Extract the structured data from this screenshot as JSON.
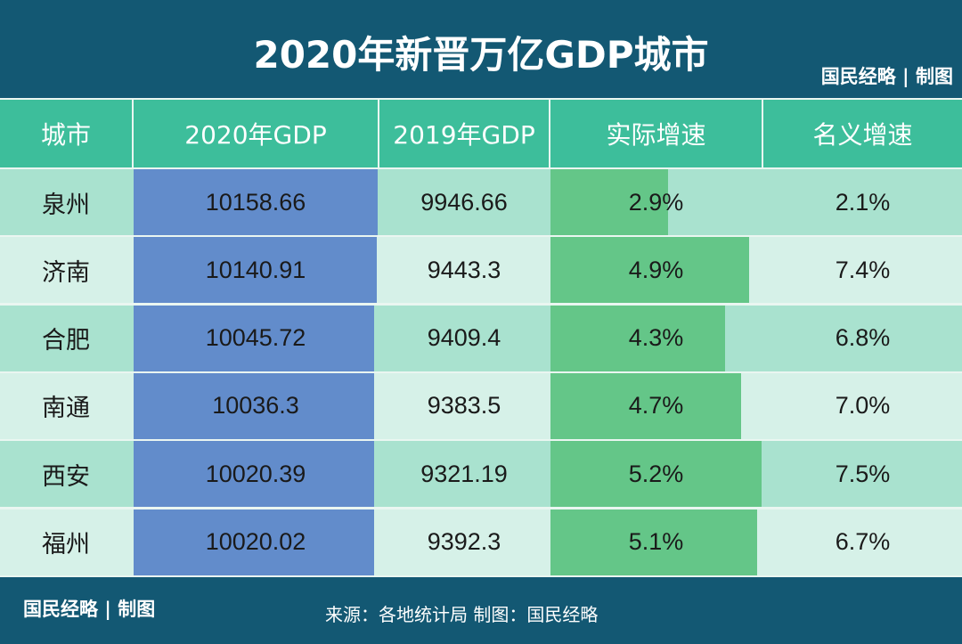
{
  "title": "2020年新晋万亿GDP城市",
  "brand": "国民经略 | 制图",
  "source": "来源：各地统计局 制图：国民经略",
  "colors": {
    "title_bg": "#135873",
    "header_bg": "#3dbe9b",
    "gdp_bar": "#628ccb",
    "growth_bar": "#64c688",
    "row_dark": "#a9e2cf",
    "row_light": "#d6f1e8"
  },
  "chart_data": {
    "type": "table",
    "title": "2020年新晋万亿GDP城市",
    "columns": [
      "城市",
      "2020年GDP",
      "2019年GDP",
      "实际增速",
      "名义增速"
    ],
    "rows": [
      {
        "city": "泉州",
        "gdp2020": "10158.66",
        "gdp2019": "9946.66",
        "real": "2.9%",
        "nominal": "2.1%",
        "gdp2020_v": 10158.66,
        "real_v": 2.9
      },
      {
        "city": "济南",
        "gdp2020": "10140.91",
        "gdp2019": "9443.3",
        "real": "4.9%",
        "nominal": "7.4%",
        "gdp2020_v": 10140.91,
        "real_v": 4.9
      },
      {
        "city": "合肥",
        "gdp2020": "10045.72",
        "gdp2019": "9409.4",
        "real": "4.3%",
        "nominal": "6.8%",
        "gdp2020_v": 10045.72,
        "real_v": 4.3
      },
      {
        "city": "南通",
        "gdp2020": "10036.3",
        "gdp2019": "9383.5",
        "real": "4.7%",
        "nominal": "7.0%",
        "gdp2020_v": 10036.3,
        "real_v": 4.7
      },
      {
        "city": "西安",
        "gdp2020": "10020.39",
        "gdp2019": "9321.19",
        "real": "5.2%",
        "nominal": "7.5%",
        "gdp2020_v": 10020.39,
        "real_v": 5.2
      },
      {
        "city": "福州",
        "gdp2020": "10020.02",
        "gdp2019": "9392.3",
        "real": "5.1%",
        "nominal": "6.7%",
        "gdp2020_v": 10020.02,
        "real_v": 5.1
      }
    ]
  }
}
